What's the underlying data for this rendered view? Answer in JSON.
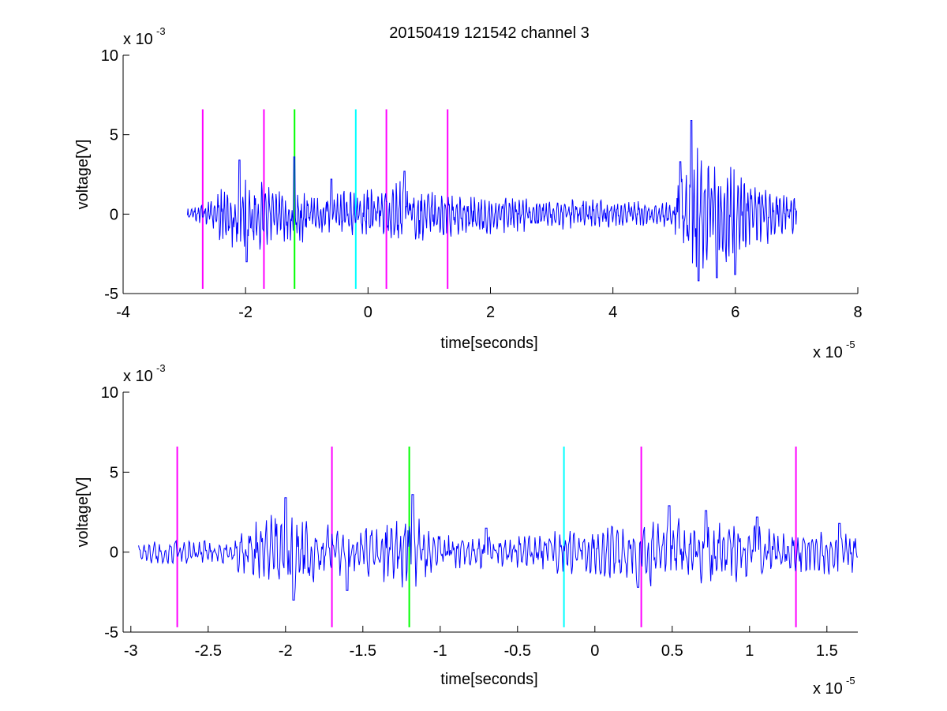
{
  "figure": {
    "title": "20150419 121542 channel 3"
  },
  "chart_data": [
    {
      "type": "line",
      "xlabel": "time[seconds]",
      "ylabel": "voltage[V]",
      "x_multiplier": "x 10",
      "x_exponent": "-5",
      "y_multiplier": "x 10",
      "y_exponent": "-3",
      "xlim": [
        -4,
        8
      ],
      "ylim": [
        -5,
        10
      ],
      "xticks": [
        -4,
        -2,
        0,
        2,
        4,
        6,
        8
      ],
      "yticks": [
        -5,
        0,
        5,
        10
      ],
      "xtick_labels": [
        "-4",
        "-2",
        "0",
        "2",
        "4",
        "6",
        "8"
      ],
      "ytick_labels": [
        "-5",
        "0",
        "5",
        "10"
      ],
      "grid": false,
      "series": [
        {
          "color": "#0000ff",
          "x_range": [
            -2.95,
            7.0
          ],
          "envelope": [
            [
              -2.95,
              0.5
            ],
            [
              -2.6,
              0.9
            ],
            [
              -2.3,
              2.2
            ],
            [
              -2.1,
              3.0
            ],
            [
              -1.8,
              2.5
            ],
            [
              -1.5,
              1.6
            ],
            [
              -1.2,
              2.2
            ],
            [
              -0.8,
              1.2
            ],
            [
              -0.3,
              1.6
            ],
            [
              0.2,
              1.8
            ],
            [
              0.6,
              2.2
            ],
            [
              1.0,
              1.8
            ],
            [
              1.4,
              1.4
            ],
            [
              2.0,
              1.3
            ],
            [
              3.0,
              1.0
            ],
            [
              4.0,
              0.9
            ],
            [
              4.8,
              0.8
            ],
            [
              5.0,
              1.2
            ],
            [
              5.2,
              3.4
            ],
            [
              5.4,
              4.6
            ],
            [
              5.6,
              3.6
            ],
            [
              5.9,
              3.2
            ],
            [
              6.2,
              2.3
            ],
            [
              6.6,
              1.8
            ],
            [
              7.0,
              1.3
            ]
          ],
          "peaks": [
            [
              -2.1,
              3.4
            ],
            [
              -1.98,
              -3.0
            ],
            [
              -1.2,
              3.6
            ],
            [
              -0.6,
              2.2
            ],
            [
              0.6,
              2.7
            ],
            [
              5.28,
              5.9
            ],
            [
              5.4,
              -4.2
            ],
            [
              5.1,
              3.3
            ],
            [
              5.7,
              -4.0
            ],
            [
              6.0,
              -3.8
            ]
          ]
        }
      ],
      "vertical_markers": [
        {
          "x": -2.7,
          "color": "#ff00ff",
          "y_range": [
            -4.7,
            6.6
          ]
        },
        {
          "x": -1.7,
          "color": "#ff00ff",
          "y_range": [
            -4.7,
            6.6
          ]
        },
        {
          "x": -1.2,
          "color": "#00ff00",
          "y_range": [
            -4.7,
            6.6
          ]
        },
        {
          "x": -0.2,
          "color": "#00ffff",
          "y_range": [
            -4.7,
            6.6
          ]
        },
        {
          "x": 0.3,
          "color": "#ff00ff",
          "y_range": [
            -4.7,
            6.6
          ]
        },
        {
          "x": 1.3,
          "color": "#ff00ff",
          "y_range": [
            -4.7,
            6.6
          ]
        }
      ]
    },
    {
      "type": "line",
      "xlabel": "time[seconds]",
      "ylabel": "voltage[V]",
      "x_multiplier": "x 10",
      "x_exponent": "-5",
      "y_multiplier": "x 10",
      "y_exponent": "-3",
      "xlim": [
        -3.05,
        1.7
      ],
      "ylim": [
        -5,
        10
      ],
      "xticks": [
        -3,
        -2.5,
        -2,
        -1.5,
        -1,
        -0.5,
        0,
        0.5,
        1,
        1.5
      ],
      "yticks": [
        -5,
        0,
        5,
        10
      ],
      "xtick_labels": [
        "-3",
        "-2.5",
        "-2",
        "-1.5",
        "-1",
        "-0.5",
        "0",
        "0.5",
        "1",
        "1.5"
      ],
      "ytick_labels": [
        "-5",
        "0",
        "5",
        "10"
      ],
      "grid": false,
      "series": [
        {
          "color": "#0000ff",
          "x_range": [
            -2.95,
            1.7
          ],
          "envelope": [
            [
              -2.95,
              0.7
            ],
            [
              -2.7,
              0.9
            ],
            [
              -2.45,
              0.7
            ],
            [
              -2.25,
              1.6
            ],
            [
              -2.1,
              2.6
            ],
            [
              -2.0,
              3.0
            ],
            [
              -1.85,
              2.2
            ],
            [
              -1.7,
              2.0
            ],
            [
              -1.5,
              1.6
            ],
            [
              -1.3,
              2.2
            ],
            [
              -1.18,
              3.2
            ],
            [
              -1.0,
              1.2
            ],
            [
              -0.6,
              1.0
            ],
            [
              -0.35,
              1.2
            ],
            [
              -0.1,
              1.6
            ],
            [
              0.15,
              1.8
            ],
            [
              0.45,
              2.4
            ],
            [
              0.75,
              2.0
            ],
            [
              1.0,
              2.0
            ],
            [
              1.25,
              1.2
            ],
            [
              1.5,
              1.5
            ],
            [
              1.7,
              1.4
            ]
          ],
          "peaks": [
            [
              -2.0,
              3.4
            ],
            [
              -1.95,
              -3.0
            ],
            [
              -1.18,
              3.6
            ],
            [
              -1.6,
              -2.4
            ],
            [
              0.48,
              2.9
            ],
            [
              0.28,
              -2.2
            ],
            [
              0.72,
              2.6
            ],
            [
              1.05,
              2.2
            ],
            [
              -0.7,
              1.5
            ],
            [
              1.58,
              1.8
            ]
          ]
        }
      ],
      "vertical_markers": [
        {
          "x": -2.7,
          "color": "#ff00ff",
          "y_range": [
            -4.7,
            6.6
          ]
        },
        {
          "x": -1.7,
          "color": "#ff00ff",
          "y_range": [
            -4.7,
            6.6
          ]
        },
        {
          "x": -1.2,
          "color": "#00ff00",
          "y_range": [
            -4.7,
            6.6
          ]
        },
        {
          "x": -0.2,
          "color": "#00ffff",
          "y_range": [
            -4.7,
            6.6
          ]
        },
        {
          "x": 0.3,
          "color": "#ff00ff",
          "y_range": [
            -4.7,
            6.6
          ]
        },
        {
          "x": 1.3,
          "color": "#ff00ff",
          "y_range": [
            -4.7,
            6.6
          ]
        }
      ]
    }
  ]
}
